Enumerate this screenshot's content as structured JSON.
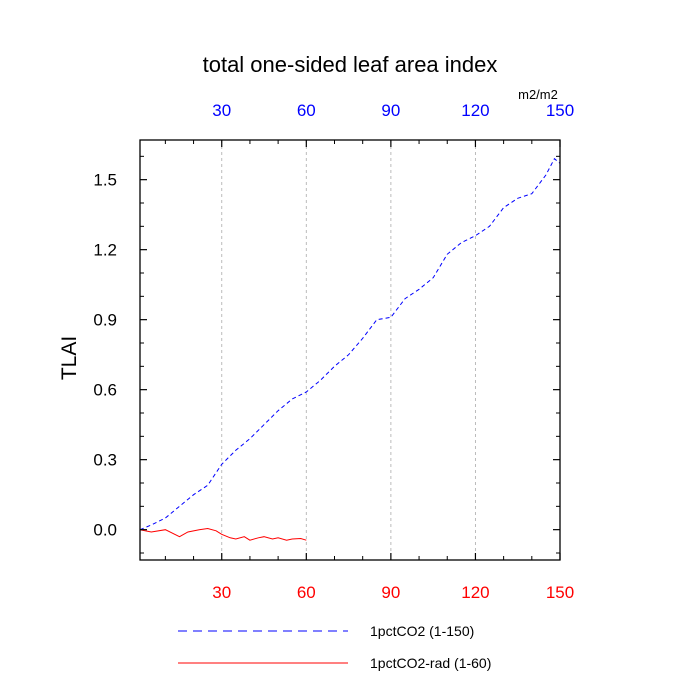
{
  "chart_data": {
    "type": "line",
    "title": "total one-sided leaf area index",
    "ylabel": "TLAI",
    "units_label": "m2/m2",
    "xlim": [
      1,
      150
    ],
    "ylim": [
      -0.13,
      1.67
    ],
    "x_ticks": [
      30,
      60,
      90,
      120,
      150
    ],
    "x_tick_labels": [
      "30",
      "60",
      "90",
      "120",
      "150"
    ],
    "y_ticks": [
      0.0,
      0.3,
      0.6,
      0.9,
      1.2,
      1.5
    ],
    "y_tick_labels": [
      "0.0",
      "0.3",
      "0.6",
      "0.9",
      "1.2",
      "1.5"
    ],
    "top_axis_color": "#0000ff",
    "bottom_axis_color": "#ff0000",
    "grid": "vertical-dashed",
    "legend_position": "bottom",
    "series": [
      {
        "name": "1pctCO2 (1-150)",
        "color": "#0000ff",
        "dash": "dashed",
        "x": [
          1,
          5,
          10,
          15,
          20,
          25,
          30,
          35,
          40,
          45,
          50,
          55,
          60,
          65,
          70,
          75,
          80,
          85,
          90,
          95,
          100,
          105,
          110,
          115,
          120,
          125,
          130,
          135,
          140,
          145,
          148,
          150
        ],
        "y": [
          0.0,
          0.02,
          0.05,
          0.1,
          0.15,
          0.19,
          0.28,
          0.34,
          0.39,
          0.45,
          0.51,
          0.56,
          0.59,
          0.64,
          0.7,
          0.75,
          0.82,
          0.9,
          0.91,
          0.99,
          1.03,
          1.08,
          1.18,
          1.23,
          1.26,
          1.3,
          1.38,
          1.42,
          1.44,
          1.52,
          1.59,
          1.57
        ]
      },
      {
        "name": "1pctCO2-rad (1-60)",
        "color": "#ff0000",
        "dash": "solid",
        "x": [
          1,
          5,
          10,
          15,
          18,
          22,
          25,
          28,
          30,
          33,
          35,
          38,
          40,
          43,
          45,
          48,
          50,
          53,
          55,
          58,
          60
        ],
        "y": [
          0.0,
          -0.01,
          0.0,
          -0.03,
          -0.01,
          0.0,
          0.005,
          -0.005,
          -0.02,
          -0.035,
          -0.04,
          -0.03,
          -0.045,
          -0.035,
          -0.03,
          -0.04,
          -0.035,
          -0.045,
          -0.04,
          -0.038,
          -0.045
        ]
      }
    ]
  }
}
